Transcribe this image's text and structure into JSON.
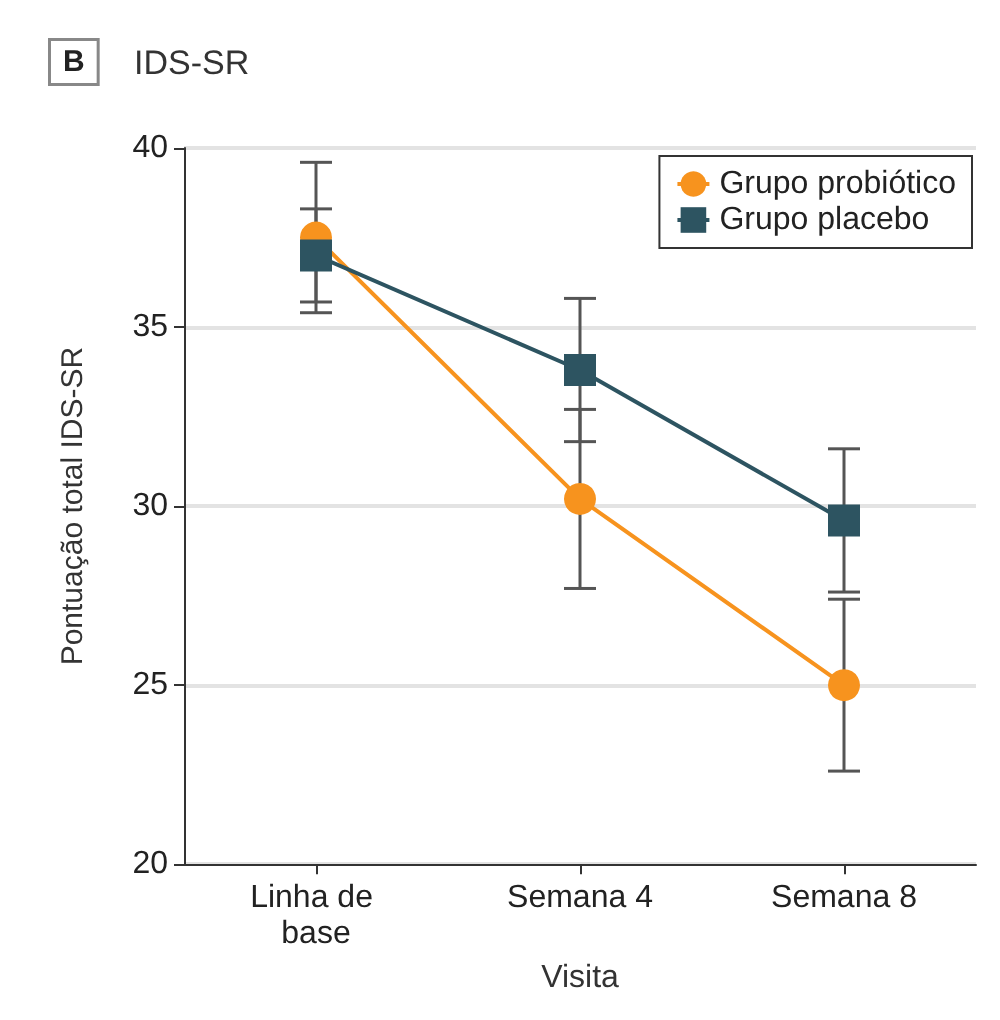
{
  "chart_data": {
    "type": "line",
    "title": "IDS-SR",
    "annotations": [
      "B"
    ],
    "xlabel": "Visita",
    "ylabel": "Pontuação total IDS-SR",
    "categories": [
      "Linha de base",
      "Semana 4",
      "Semana 8"
    ],
    "series": [
      {
        "name": "Grupo probiótico",
        "color": "#f7931e",
        "marker": "circle",
        "values": [
          37.5,
          30.2,
          25.0
        ],
        "errors": [
          2.1,
          2.5,
          2.4
        ]
      },
      {
        "name": "Grupo placebo",
        "color": "#2d5461",
        "marker": "square",
        "values": [
          37.0,
          33.8,
          29.6
        ],
        "errors": [
          1.3,
          2.0,
          2.0
        ]
      }
    ],
    "ylim": [
      20,
      40
    ],
    "yticks": [
      20,
      25,
      30,
      35,
      40
    ],
    "grid": "y",
    "legend": "top right"
  }
}
